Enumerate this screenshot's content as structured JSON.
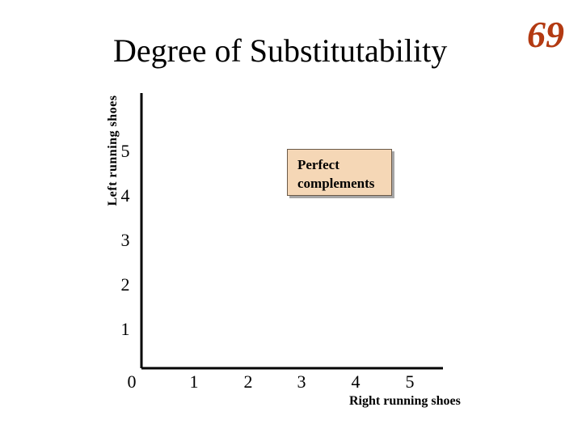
{
  "slide": {
    "title": "Degree of Substitutability",
    "number": "69"
  },
  "colors": {
    "slide_number": "#b33a12",
    "callout_fill": "#f5d7b6",
    "axes": "#000000"
  },
  "callout": {
    "line1": "Perfect",
    "line2": "complements"
  },
  "chart_data": {
    "type": "scatter",
    "xlabel": "Right running shoes",
    "ylabel": "Left running shoes",
    "x_ticks": [
      "0",
      "1",
      "2",
      "3",
      "4",
      "5"
    ],
    "y_ticks": [
      "1",
      "2",
      "3",
      "4",
      "5"
    ],
    "xlim": [
      0,
      5
    ],
    "ylim": [
      0,
      5
    ],
    "series": [],
    "grid": false,
    "annotation": "Perfect complements"
  }
}
